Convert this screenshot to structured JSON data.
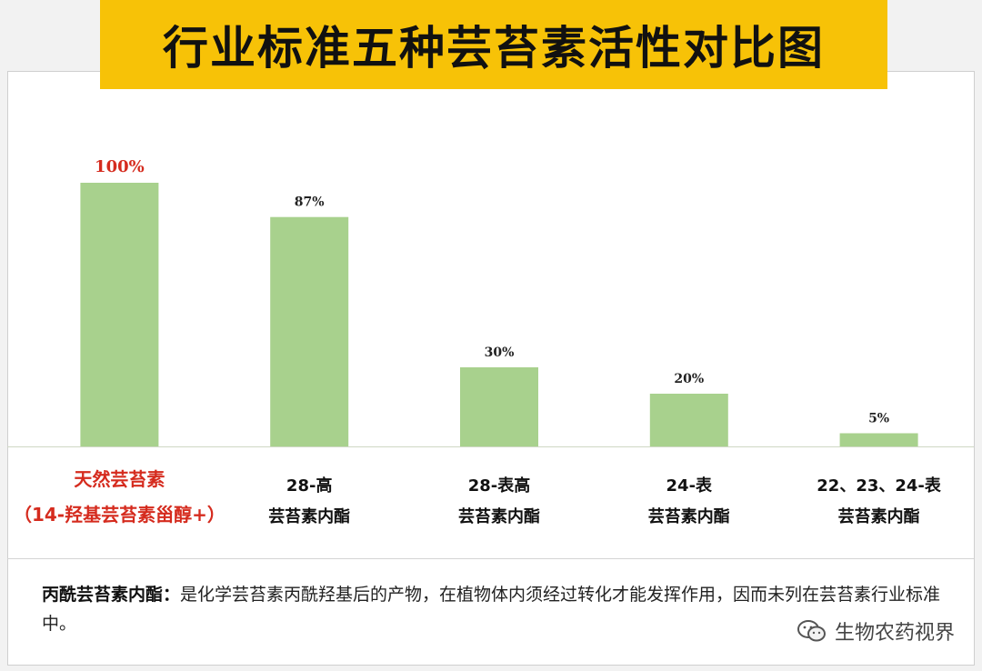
{
  "title": "行业标准五种芸苔素活性对比图",
  "colors": {
    "bar": "#a8d18d",
    "highlight": "#d52b1e",
    "banner": "#f7c207"
  },
  "chart_data": {
    "type": "bar",
    "categories": [
      [
        "天然芸苔素",
        "（14-羟基芸苔素甾醇+）"
      ],
      [
        "28-高",
        "芸苔素内酯"
      ],
      [
        "28-表高",
        "芸苔素内酯"
      ],
      [
        "24-表",
        "芸苔素内酯"
      ],
      [
        "22、23、24-表",
        "芸苔素内酯"
      ]
    ],
    "values": [
      100,
      87,
      30,
      20,
      5
    ],
    "value_labels": [
      "100%",
      "87%",
      "30%",
      "20%",
      "5%"
    ],
    "highlight_index": 0,
    "ylim": [
      0,
      100
    ],
    "grid": false
  },
  "note": {
    "term": "丙酰芸苔素内酯：",
    "text": "是化学芸苔素丙酰羟基后的产物，在植物体内须经过转化才能发挥作用，因而未列在芸苔素行业标准中。"
  },
  "watermark": {
    "text": "生物农药视界",
    "icon": "wechat-icon"
  }
}
